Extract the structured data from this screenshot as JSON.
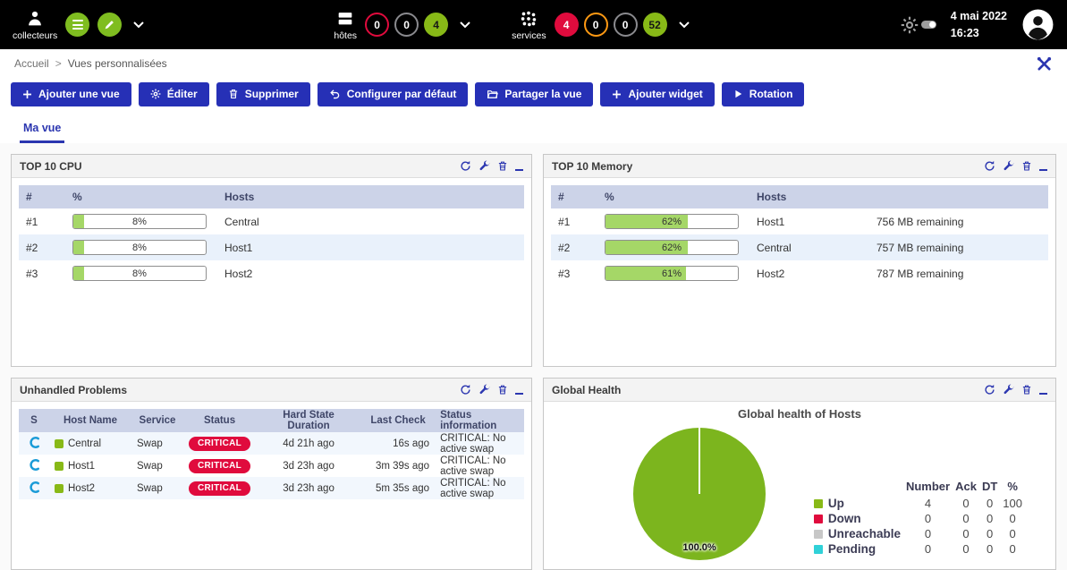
{
  "palette": {
    "accent_blue": "#2630b6",
    "status_green": "#88b917",
    "status_red": "#e00b3d",
    "status_orange": "#ff9913",
    "status_gray": "#8a8a8e",
    "status_cyan": "#30d1d8",
    "bar_fill_green": "#a5d767",
    "table_header_bg": "#ccd3e8"
  },
  "header": {
    "pollers": {
      "label": "collecteurs"
    },
    "hosts": {
      "label": "hôtes",
      "badges": [
        {
          "value": "0",
          "status": "down"
        },
        {
          "value": "0",
          "status": "unreachable"
        },
        {
          "value": "4",
          "status": "up"
        }
      ]
    },
    "services": {
      "label": "services",
      "badges": [
        {
          "value": "4",
          "status": "critical"
        },
        {
          "value": "0",
          "status": "warning"
        },
        {
          "value": "0",
          "status": "unknown"
        },
        {
          "value": "52",
          "status": "ok"
        }
      ]
    },
    "clock": {
      "date": "4 mai 2022",
      "time": "16:23"
    }
  },
  "breadcrumb": {
    "home": "Accueil",
    "separator": ">",
    "current": "Vues personnalisées"
  },
  "toolbar": {
    "buttons": [
      {
        "label": "Ajouter une vue",
        "icon": "plus-icon"
      },
      {
        "label": "Éditer",
        "icon": "gear-icon"
      },
      {
        "label": "Supprimer",
        "icon": "trash-icon"
      },
      {
        "label": "Configurer par défaut",
        "icon": "undo-icon"
      },
      {
        "label": "Partager la vue",
        "icon": "folder-icon"
      },
      {
        "label": "Ajouter widget",
        "icon": "plus-icon"
      },
      {
        "label": "Rotation",
        "icon": "play-icon"
      }
    ]
  },
  "tabs": {
    "active": "Ma vue"
  },
  "widget_actions": [
    "refresh",
    "configure",
    "delete",
    "minimize"
  ],
  "widgets": {
    "top_cpu": {
      "title": "TOP 10 CPU",
      "columns": {
        "rank": "#",
        "pct": "%",
        "host": "Hosts"
      },
      "rows": [
        {
          "rank": "#1",
          "pct": 8,
          "pct_label": "8%",
          "host": "Central"
        },
        {
          "rank": "#2",
          "pct": 8,
          "pct_label": "8%",
          "host": "Host1"
        },
        {
          "rank": "#3",
          "pct": 8,
          "pct_label": "8%",
          "host": "Host2"
        }
      ]
    },
    "top_memory": {
      "title": "TOP 10 Memory",
      "columns": {
        "rank": "#",
        "pct": "%",
        "host": "Hosts"
      },
      "rows": [
        {
          "rank": "#1",
          "pct": 62,
          "pct_label": "62%",
          "host": "Host1",
          "detail": "756 MB remaining"
        },
        {
          "rank": "#2",
          "pct": 62,
          "pct_label": "62%",
          "host": "Central",
          "detail": "757 MB remaining"
        },
        {
          "rank": "#3",
          "pct": 61,
          "pct_label": "61%",
          "host": "Host2",
          "detail": "787 MB remaining"
        }
      ]
    },
    "unhandled_problems": {
      "title": "Unhandled Problems",
      "columns": [
        "S",
        "Host Name",
        "Service",
        "Status",
        "Hard State Duration",
        "Last Check",
        "Status information"
      ],
      "rows": [
        {
          "host": "Central",
          "service": "Swap",
          "status": "CRITICAL",
          "duration": "4d 21h ago",
          "last_check": "16s ago",
          "info": "CRITICAL: No active swap"
        },
        {
          "host": "Host1",
          "service": "Swap",
          "status": "CRITICAL",
          "duration": "3d 23h ago",
          "last_check": "3m 39s ago",
          "info": "CRITICAL: No active swap"
        },
        {
          "host": "Host2",
          "service": "Swap",
          "status": "CRITICAL",
          "duration": "3d 23h ago",
          "last_check": "5m 35s ago",
          "info": "CRITICAL: No active swap"
        }
      ]
    },
    "global_health": {
      "title": "Global Health",
      "chart_title": "Global health of Hosts",
      "pie_label": "100.0%",
      "pie_color": "#7cb51e",
      "legend_columns": [
        "Number",
        "Ack",
        "DT",
        "%"
      ],
      "legend_rows": [
        {
          "label": "Up",
          "color": "#88b917",
          "number": "4",
          "ack": "0",
          "dt": "0",
          "pct": "100"
        },
        {
          "label": "Down",
          "color": "#e00b3d",
          "number": "0",
          "ack": "0",
          "dt": "0",
          "pct": "0"
        },
        {
          "label": "Unreachable",
          "color": "#c7c7c7",
          "number": "0",
          "ack": "0",
          "dt": "0",
          "pct": "0"
        },
        {
          "label": "Pending",
          "color": "#30d1d8",
          "number": "0",
          "ack": "0",
          "dt": "0",
          "pct": "0"
        }
      ]
    }
  },
  "chart_data": {
    "type": "pie",
    "title": "Global health of Hosts",
    "labels": [
      "Up",
      "Down",
      "Unreachable",
      "Pending"
    ],
    "values": [
      100,
      0,
      0,
      0
    ],
    "colors": [
      "#7cb51e",
      "#e00b3d",
      "#c7c7c7",
      "#30d1d8"
    ],
    "annotation": "100.0%",
    "legend_position": "right"
  }
}
